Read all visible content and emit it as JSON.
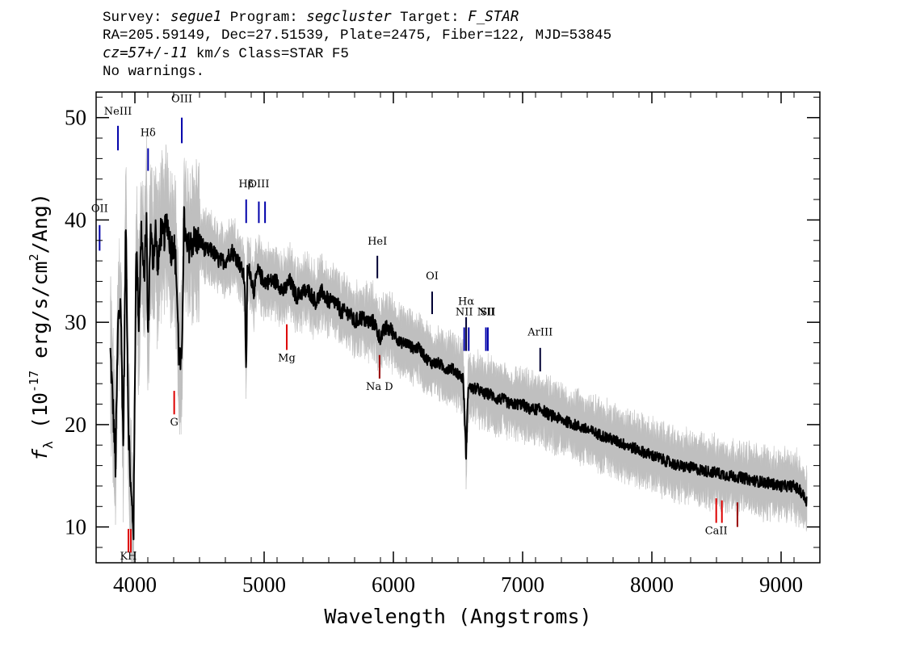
{
  "header": {
    "survey_label": "Survey:",
    "survey": "segue1",
    "program_label": "Program:",
    "program": "segcluster",
    "target_label": "Target:",
    "target": "F_STAR",
    "line2": "RA=205.59149, Dec=27.51539, Plate=2475, Fiber=122, MJD=53845",
    "cz": "cz=57+/-11",
    "cz_rest": " km/s Class=STAR F5",
    "line4": "No warnings."
  },
  "chart_data": {
    "type": "line",
    "xlabel": "Wavelength (Angstroms)",
    "ylabel_prefix": "f",
    "ylabel_sub": "λ",
    "ylabel_rest": " (10",
    "ylabel_exp": "-17",
    "ylabel_unit": " erg/s/cm",
    "ylabel_exp2": "2",
    "ylabel_end": "/Ang)",
    "xlim": [
      3700,
      9300
    ],
    "ylim": [
      6.5,
      52.5
    ],
    "x_ticks": [
      4000,
      5000,
      6000,
      7000,
      8000,
      9000
    ],
    "x_tick_labels": [
      "4000",
      "5000",
      "6000",
      "7000",
      "8000",
      "9000"
    ],
    "y_ticks": [
      10,
      20,
      30,
      40,
      50
    ],
    "y_tick_labels": [
      "10",
      "20",
      "30",
      "40",
      "50"
    ],
    "colors": {
      "flux": "#000000",
      "error": "#bfbfbf",
      "emission": "#0000aa",
      "absorption": "#dd0000"
    },
    "series": [
      {
        "x": [
          3810,
          3830,
          3850,
          3870,
          3890,
          3910,
          3930,
          3950,
          3970,
          3990,
          4010,
          4030,
          4050,
          4070,
          4090,
          4101,
          4120,
          4140,
          4160,
          4180,
          4200,
          4220,
          4250,
          4280,
          4300,
          4320,
          4340,
          4360,
          4380,
          4400,
          4450,
          4500,
          4550,
          4600,
          4650,
          4700,
          4750,
          4800,
          4830,
          4850,
          4861,
          4870,
          4890,
          4920,
          4950,
          5000,
          5050,
          5100,
          5150,
          5200,
          5250,
          5300,
          5350,
          5400,
          5450,
          5500,
          5550,
          5600,
          5650,
          5700,
          5750,
          5800,
          5850,
          5893,
          5950,
          6000,
          6050,
          6100,
          6150,
          6200,
          6250,
          6300,
          6350,
          6400,
          6450,
          6500,
          6540,
          6563,
          6580,
          6600,
          6650,
          6700,
          6750,
          6800,
          6850,
          6900,
          6950,
          7000,
          7050,
          7100,
          7150,
          7200,
          7300,
          7400,
          7500,
          7600,
          7700,
          7800,
          7900,
          8000,
          8100,
          8200,
          8300,
          8400,
          8500,
          8600,
          8700,
          8800,
          8900,
          9000,
          9100,
          9150,
          9200
        ],
        "y": [
          27,
          22,
          16,
          30,
          32,
          18,
          40,
          20,
          13,
          10,
          38,
          30,
          39,
          34,
          40,
          28,
          39,
          36,
          39,
          35,
          39,
          38,
          40,
          37,
          38,
          35,
          27,
          25,
          40,
          37,
          38,
          38,
          37,
          37,
          36,
          36,
          37,
          36,
          35,
          34,
          24,
          35,
          35,
          33,
          35,
          34,
          34,
          34,
          33,
          34,
          32.5,
          33,
          33,
          32,
          33,
          32,
          32,
          31,
          31,
          30,
          30.5,
          30,
          30,
          28.5,
          29.5,
          29,
          28,
          28,
          27.5,
          27.5,
          26.5,
          26,
          26,
          25.5,
          25.5,
          25,
          24.5,
          17,
          24,
          23.5,
          23.5,
          23,
          23,
          22.5,
          22.5,
          22,
          22,
          22,
          21.5,
          21.5,
          21.5,
          21,
          20.5,
          20,
          19.5,
          19,
          18.5,
          18,
          17.5,
          17,
          16.5,
          16,
          15.8,
          15.5,
          15.3,
          15,
          14.8,
          14.5,
          14.3,
          14,
          14,
          13.5,
          12.5
        ],
        "err_halfwidth": 2.5
      }
    ],
    "spectral_lines": [
      {
        "label": "NeIII",
        "x": 3869,
        "y_top": 49.2,
        "y_bot": 46.8,
        "label_y": 50.3,
        "color": "emission",
        "label_pos": "above"
      },
      {
        "label": "Hδ",
        "x": 4102,
        "y_top": 47.0,
        "y_bot": 44.8,
        "label_y": 48.2,
        "color": "emission",
        "label_pos": "above"
      },
      {
        "label": "OIII",
        "x": 4363,
        "y_top": 50.0,
        "y_bot": 47.5,
        "label_y": 51.5,
        "color": "emission",
        "label_pos": "above"
      },
      {
        "label": "Hβ",
        "x": 4861,
        "y_top": 42.0,
        "y_bot": 39.7,
        "label_y": 43.2,
        "color": "emission",
        "label_pos": "above"
      },
      {
        "label": "OIII",
        "x": 4959,
        "y_top": 41.8,
        "y_bot": 39.7,
        "label_y": 43.2,
        "color": "emission",
        "label_pos": "above"
      },
      {
        "label": "",
        "x": 5007,
        "y_top": 41.8,
        "y_bot": 39.7,
        "label_y": 0,
        "color": "emission",
        "label_pos": "none"
      },
      {
        "label": "OII",
        "x": 3727,
        "y_top": 39.5,
        "y_bot": 37.0,
        "label_y": 40.8,
        "color": "emission",
        "label_pos": "above"
      },
      {
        "label": "HeI",
        "x": 5876,
        "y_top": 36.5,
        "y_bot": 34.3,
        "label_y": 37.6,
        "color": "emission_dark",
        "label_pos": "above"
      },
      {
        "label": "OI",
        "x": 6300,
        "y_top": 33.0,
        "y_bot": 30.8,
        "label_y": 34.2,
        "color": "emission_dark",
        "label_pos": "above"
      },
      {
        "label": "NII",
        "x": 6548,
        "y_top": 29.5,
        "y_bot": 27.2,
        "label_y": 30.7,
        "color": "emission",
        "label_pos": "above"
      },
      {
        "label": "Hα",
        "x": 6563,
        "y_top": 30.5,
        "y_bot": 27.2,
        "label_y": 31.7,
        "color": "emission_dark",
        "label_pos": "above"
      },
      {
        "label": "",
        "x": 6583,
        "y_top": 29.5,
        "y_bot": 27.2,
        "label_y": 0,
        "color": "emission",
        "label_pos": "none"
      },
      {
        "label": "NII",
        "x": 6716,
        "y_top": 29.5,
        "y_bot": 27.2,
        "label_y": 30.7,
        "color": "emission",
        "label_pos": "above"
      },
      {
        "label": "SII",
        "x": 6731,
        "y_top": 29.5,
        "y_bot": 27.2,
        "label_y": 30.7,
        "color": "emission",
        "label_pos": "above"
      },
      {
        "label": "ArIII",
        "x": 7136,
        "y_top": 27.5,
        "y_bot": 25.2,
        "label_y": 28.7,
        "color": "emission_dark",
        "label_pos": "above"
      },
      {
        "label": "KH",
        "x": 3950,
        "y_top": 9.8,
        "y_bot": 7.5,
        "label_y": 6.8,
        "color": "absorption",
        "label_pos": "below"
      },
      {
        "label": "",
        "x": 3968,
        "y_top": 9.8,
        "y_bot": 7.5,
        "label_y": 0,
        "color": "absorption",
        "label_pos": "none"
      },
      {
        "label": "G",
        "x": 4304,
        "y_top": 23.3,
        "y_bot": 21.0,
        "label_y": 19.9,
        "color": "absorption",
        "label_pos": "below"
      },
      {
        "label": "Mg",
        "x": 5175,
        "y_top": 29.8,
        "y_bot": 27.3,
        "label_y": 26.2,
        "color": "absorption",
        "label_pos": "below"
      },
      {
        "label": "Na D",
        "x": 5893,
        "y_top": 26.8,
        "y_bot": 24.5,
        "label_y": 23.4,
        "color": "absorption_dark",
        "label_pos": "below"
      },
      {
        "label": "CaII",
        "x": 8498,
        "y_top": 12.8,
        "y_bot": 10.4,
        "label_y": 9.3,
        "color": "absorption",
        "label_pos": "below"
      },
      {
        "label": "",
        "x": 8542,
        "y_top": 12.6,
        "y_bot": 10.4,
        "label_y": 0,
        "color": "absorption",
        "label_pos": "none"
      },
      {
        "label": "",
        "x": 8662,
        "y_top": 12.4,
        "y_bot": 10.0,
        "label_y": 0,
        "color": "absorption_dark",
        "label_pos": "none"
      }
    ]
  }
}
